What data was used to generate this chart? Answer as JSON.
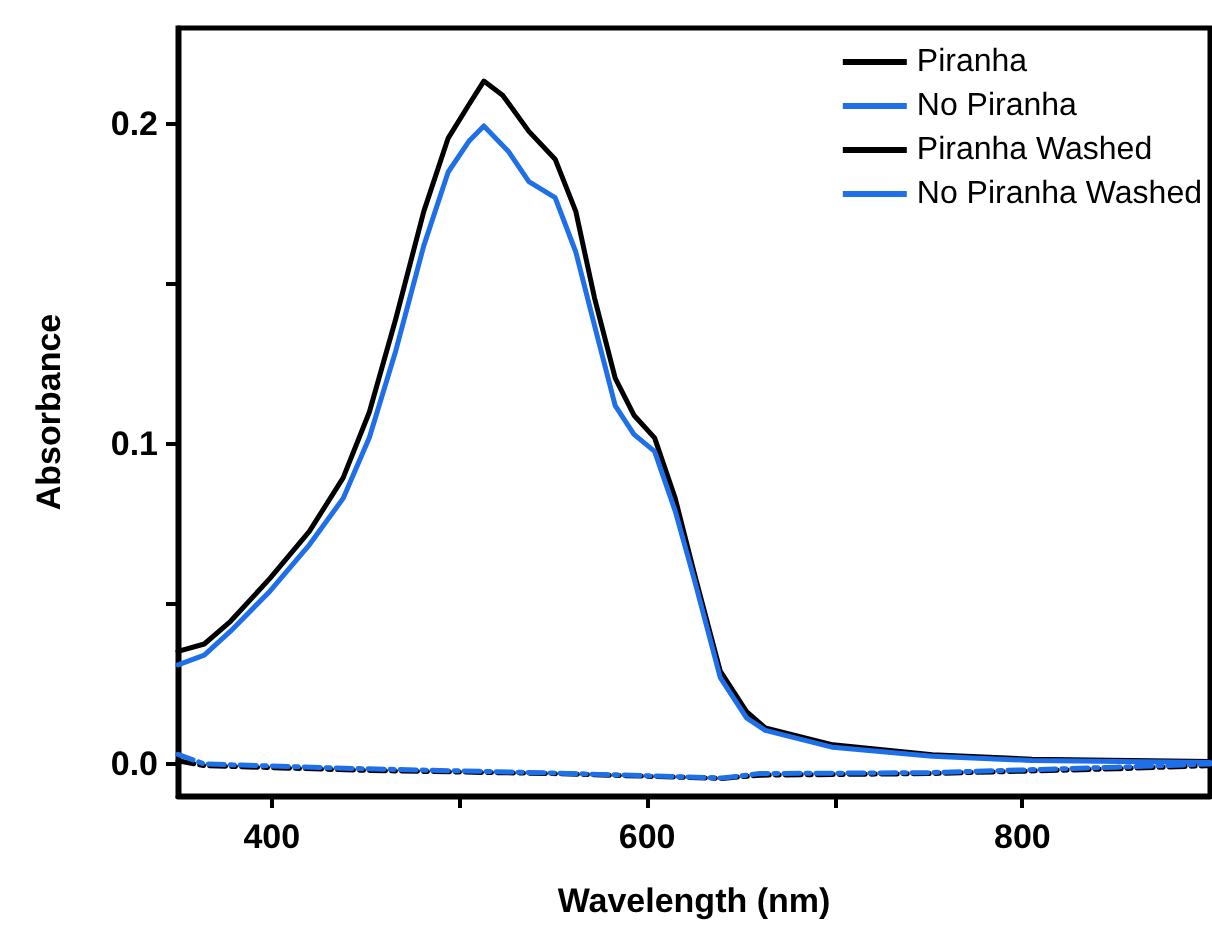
{
  "chart_data": {
    "type": "line",
    "xlabel": "Wavelength (nm)",
    "ylabel": "Absorbance",
    "xlim": [
      350,
      900
    ],
    "ylim": [
      -0.01,
      0.23
    ],
    "xticks": [
      400,
      {
        "value": 500,
        "label": null
      },
      600,
      {
        "value": 700,
        "label": null
      },
      800
    ],
    "yticks": [
      {
        "value": 0,
        "label": "0.0"
      },
      {
        "value": 0.05,
        "label": null
      },
      0.1,
      {
        "value": 0.15,
        "label": null
      },
      0.2
    ],
    "grid": false,
    "legend": "top right",
    "marker": "none",
    "series": [
      {
        "name": "Piranha",
        "color": "#000000",
        "line_style": "solid",
        "x": [
          350,
          364,
          378,
          399,
          420,
          438,
          452,
          466,
          481,
          494,
          505,
          513,
          523,
          537,
          551,
          562,
          572,
          583,
          593,
          604,
          615,
          625,
          639,
          653,
          663,
          699,
          752,
          805,
          900
        ],
        "values": [
          0.0352,
          0.0375,
          0.0446,
          0.058,
          0.0727,
          0.0894,
          0.11,
          0.139,
          0.1727,
          0.1956,
          0.206,
          0.2134,
          0.209,
          0.1977,
          0.189,
          0.1727,
          0.1456,
          0.1206,
          0.109,
          0.1019,
          0.083,
          0.06,
          0.029,
          0.0164,
          0.0113,
          0.006,
          0.0029,
          0.0015,
          0.0008
        ]
      },
      {
        "name": "No Piranha",
        "color": "#1f6fe8",
        "line_style": "solid",
        "x": [
          350,
          364,
          378,
          399,
          420,
          438,
          452,
          466,
          481,
          494,
          505,
          513,
          526,
          537,
          551,
          562,
          572,
          583,
          593,
          604,
          615,
          625,
          639,
          653,
          663,
          699,
          752,
          805,
          900
        ],
        "values": [
          0.031,
          0.034,
          0.0415,
          0.054,
          0.0685,
          0.083,
          0.102,
          0.129,
          0.162,
          0.185,
          0.1946,
          0.1994,
          0.1915,
          0.182,
          0.177,
          0.16,
          0.137,
          0.112,
          0.103,
          0.0977,
          0.079,
          0.058,
          0.027,
          0.0144,
          0.0105,
          0.0052,
          0.0024,
          0.0011,
          0.0005
        ]
      },
      {
        "name": "Piranha Washed",
        "color": "#000000",
        "line_style": "dashdot",
        "x": [
          350,
          364,
          450,
          550,
          640,
          660,
          750,
          850,
          900
        ],
        "values": [
          0.001,
          -0.0005,
          -0.002,
          -0.003,
          -0.0045,
          -0.0035,
          -0.003,
          -0.0015,
          -0.0005
        ]
      },
      {
        "name": "No Piranha Washed",
        "color": "#1f6fe8",
        "line_style": "dashdot",
        "x": [
          350,
          364,
          450,
          550,
          640,
          660,
          750,
          850,
          900
        ],
        "values": [
          0.003,
          0.0,
          -0.0015,
          -0.0028,
          -0.0044,
          -0.003,
          -0.0027,
          -0.001,
          0.0
        ]
      }
    ]
  }
}
